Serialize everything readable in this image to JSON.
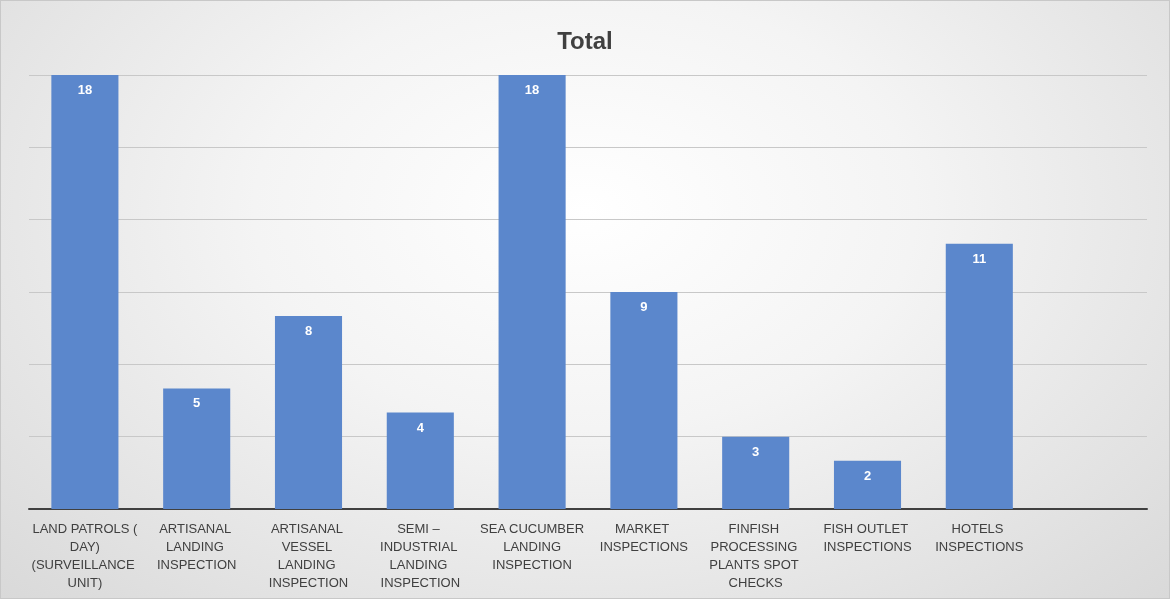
{
  "chart_data": {
    "type": "bar",
    "title": "Total",
    "categories": [
      "LAND PATROLS ( DAY) (SURVEILLANCE UNIT)",
      "ARTISANAL LANDING INSPECTION",
      "ARTISANAL VESSEL LANDING INSPECTION",
      "SEMI – INDUSTRIAL LANDING INSPECTION",
      "SEA CUCUMBER LANDING INSPECTION",
      "MARKET INSPECTIONS",
      "FINFISH PROCESSING PLANTS SPOT CHECKS",
      "FISH OUTLET INSPECTIONS",
      "HOTELS INSPECTIONS",
      null
    ],
    "values": [
      18,
      5,
      8,
      4,
      18,
      9,
      3,
      2,
      11,
      null
    ],
    "color": "#5b87cc",
    "grid": "y",
    "data_labels": true,
    "tick_labels": "x"
  }
}
